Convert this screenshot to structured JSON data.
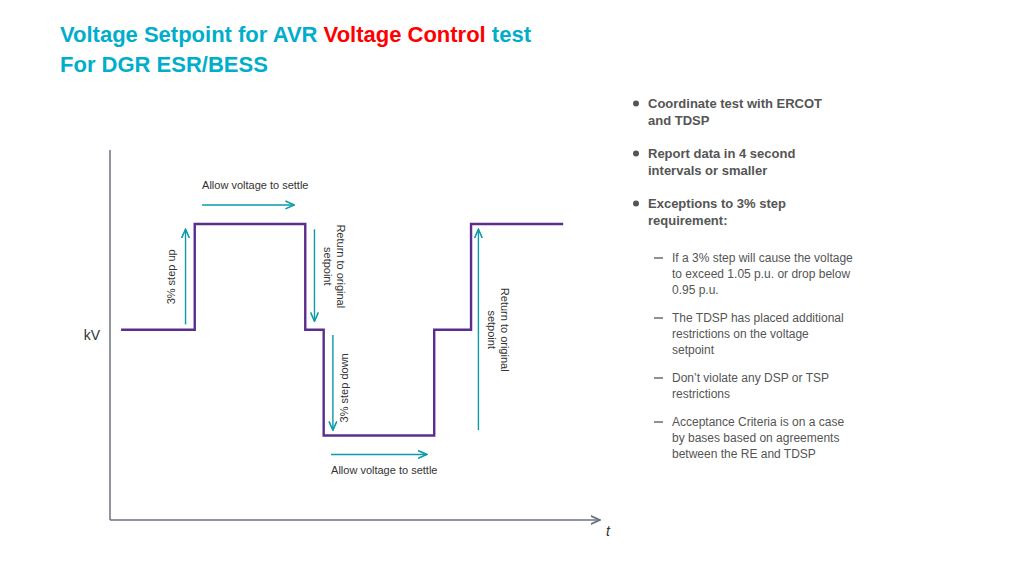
{
  "chart_data": {
    "type": "line",
    "title": [
      {
        "text": "Voltage Setpoint for AVR ",
        "color": "#00AECC"
      },
      {
        "text": "Voltage Control",
        "color": "#FF0000"
      },
      {
        "text": " test",
        "color": "#00AECC"
      }
    ],
    "subtitle": {
      "text": "For DGR ESR/BESS",
      "color": "#00AECC"
    },
    "xlabel": "t",
    "ylabel": "kV",
    "x": [
      0,
      2,
      2,
      5,
      5,
      5.5,
      5.5,
      8.5,
      8.5,
      9.5,
      9.5,
      12
    ],
    "values": [
      0,
      0,
      1,
      1,
      0,
      0,
      -1,
      -1,
      0,
      0,
      1,
      1
    ],
    "color": "#5B2D8E",
    "xlim": [
      -0.3,
      13.0
    ],
    "ylim": [
      -1.8,
      1.7
    ],
    "tick_labels": false,
    "grid": false,
    "annotations": [
      "3% step up",
      "Allow voltage to settle",
      "Return to original\nsetpoint",
      "3% step down",
      "Allow voltage to settle",
      "Return to original\nsetpoint"
    ],
    "bullets": [
      {
        "text": "Coordinate test with ERCOT\nand TDSP"
      },
      {
        "text": "Report data in 4 second\nintervals or smaller"
      },
      {
        "text": "Exceptions to 3% step\nrequirement:",
        "items": [
          "If a 3% step will cause the voltage\nto exceed 1.05 p.u. or drop below\n0.95 p.u.",
          "The TDSP has placed additional\nrestrictions on the voltage\nsetpoint",
          "Don’t violate any DSP or TSP\nrestrictions",
          "Acceptance Criteria is on a case\nby bases based on agreements\nbetween the RE and TDSP"
        ]
      }
    ]
  }
}
